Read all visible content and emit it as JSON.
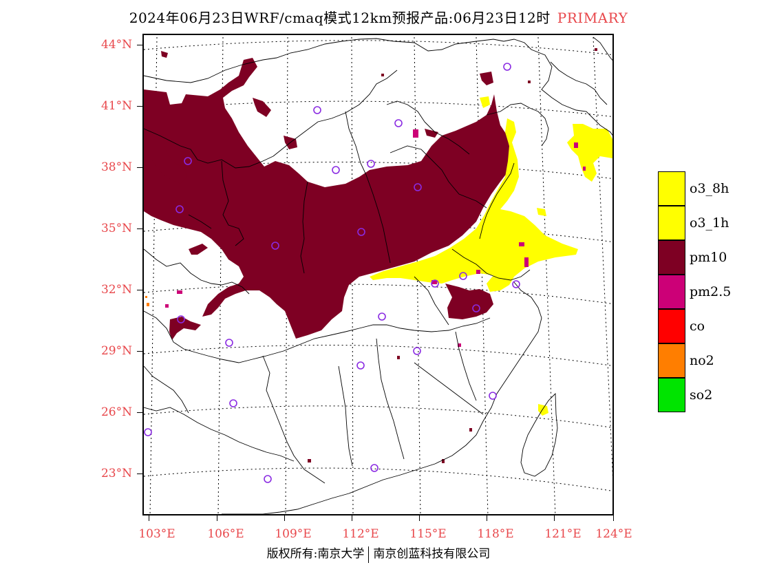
{
  "title": {
    "text": "2024年06月23日WRF/cmaq模式12km预报产品:06月23日12时",
    "tag": "PRIMARY",
    "tag_color": "#e8474b"
  },
  "axes": {
    "lat_labels": [
      "44°N",
      "41°N",
      "38°N",
      "35°N",
      "32°N",
      "29°N",
      "26°N",
      "23°N"
    ],
    "lon_labels": [
      "103°E",
      "106°E",
      "109°E",
      "112°E",
      "115°E",
      "118°E",
      "121°E",
      "124°E"
    ],
    "label_color": "#e8474b"
  },
  "legend": [
    {
      "label": "o3_8h",
      "color": "#ffff00"
    },
    {
      "label": "o3_1h",
      "color": "#ffff00"
    },
    {
      "label": "pm10",
      "color": "#7e0023"
    },
    {
      "label": "pm2.5",
      "color": "#cc0077"
    },
    {
      "label": "co",
      "color": "#ff0000"
    },
    {
      "label": "no2",
      "color": "#ff7e00"
    },
    {
      "label": "so2",
      "color": "#00e400"
    }
  ],
  "footer": {
    "left": "版权所有:南京大学",
    "right": "南京创蓝科技有限公司"
  }
}
